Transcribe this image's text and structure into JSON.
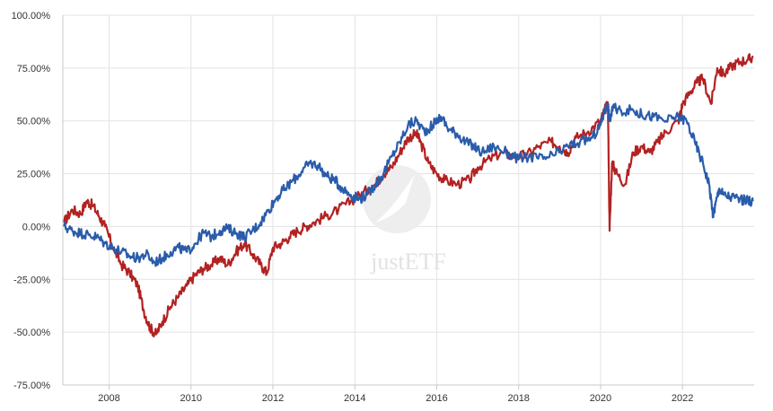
{
  "chart_data": {
    "type": "line",
    "watermark": "justETF",
    "y_ticks": [
      "100.00%",
      "75.00%",
      "50.00%",
      "25.00%",
      "0.00%",
      "-25.00%",
      "-50.00%",
      "-75.00%"
    ],
    "y_tick_values": [
      100,
      75,
      50,
      25,
      0,
      -25,
      -50,
      -75
    ],
    "x_ticks": [
      "2008",
      "2010",
      "2012",
      "2014",
      "2016",
      "2018",
      "2020",
      "2022"
    ],
    "x_tick_values": [
      2008,
      2010,
      2012,
      2014,
      2016,
      2018,
      2020,
      2022
    ],
    "xlim": [
      2006.87,
      2023.75
    ],
    "ylim": [
      -75,
      100
    ],
    "grid": true,
    "series": [
      {
        "color": "#b22222",
        "x": [
          2006.9,
          2007.1,
          2007.3,
          2007.45,
          2007.6,
          2007.75,
          2007.9,
          2008.1,
          2008.3,
          2008.5,
          2008.7,
          2008.85,
          2009.0,
          2009.15,
          2009.3,
          2009.5,
          2009.7,
          2009.9,
          2010.1,
          2010.3,
          2010.5,
          2010.7,
          2010.9,
          2011.1,
          2011.3,
          2011.5,
          2011.7,
          2011.85,
          2012.0,
          2012.2,
          2012.4,
          2012.6,
          2012.8,
          2013.0,
          2013.3,
          2013.6,
          2013.9,
          2014.2,
          2014.5,
          2014.7,
          2014.9,
          2015.1,
          2015.3,
          2015.5,
          2015.6,
          2015.8,
          2016.0,
          2016.2,
          2016.5,
          2016.8,
          2017.0,
          2017.3,
          2017.6,
          2017.9,
          2018.2,
          2018.5,
          2018.8,
          2019.0,
          2019.2,
          2019.4,
          2019.7,
          2020.0,
          2020.1,
          2020.18,
          2020.22,
          2020.28,
          2020.4,
          2020.6,
          2020.8,
          2021.0,
          2021.2,
          2021.4,
          2021.6,
          2021.9,
          2022.0,
          2022.2,
          2022.35,
          2022.5,
          2022.7,
          2022.85,
          2023.0,
          2023.2,
          2023.4,
          2023.6,
          2023.72
        ],
        "values": [
          2,
          8,
          6,
          12,
          10,
          5,
          0,
          -10,
          -18,
          -22,
          -28,
          -40,
          -48,
          -51,
          -45,
          -38,
          -33,
          -28,
          -23,
          -20,
          -18,
          -15,
          -18,
          -12,
          -8,
          -13,
          -18,
          -22,
          -10,
          -8,
          -5,
          -2,
          0,
          2,
          5,
          8,
          12,
          16,
          20,
          25,
          28,
          35,
          42,
          44,
          40,
          30,
          25,
          22,
          20,
          22,
          28,
          32,
          35,
          33,
          34,
          38,
          40,
          38,
          35,
          42,
          45,
          50,
          55,
          58,
          -2,
          30,
          25,
          20,
          35,
          38,
          35,
          40,
          45,
          50,
          58,
          64,
          68,
          70,
          58,
          75,
          72,
          76,
          78,
          79,
          80
        ]
      },
      {
        "color": "#2a5caa",
        "x": [
          2006.9,
          2007.1,
          2007.3,
          2007.5,
          2007.7,
          2007.9,
          2008.1,
          2008.3,
          2008.5,
          2008.7,
          2008.9,
          2009.1,
          2009.3,
          2009.5,
          2009.7,
          2009.9,
          2010.1,
          2010.3,
          2010.5,
          2010.7,
          2010.9,
          2011.1,
          2011.3,
          2011.5,
          2011.7,
          2011.9,
          2012.1,
          2012.3,
          2012.5,
          2012.7,
          2012.9,
          2013.1,
          2013.3,
          2013.5,
          2013.7,
          2013.9,
          2014.1,
          2014.3,
          2014.5,
          2014.7,
          2014.9,
          2015.1,
          2015.3,
          2015.5,
          2015.7,
          2015.9,
          2016.1,
          2016.3,
          2016.5,
          2016.7,
          2016.9,
          2017.1,
          2017.4,
          2017.7,
          2018.0,
          2018.3,
          2018.6,
          2018.9,
          2019.2,
          2019.5,
          2019.8,
          2020.0,
          2020.1,
          2020.18,
          2020.22,
          2020.3,
          2020.5,
          2020.8,
          2021.0,
          2021.3,
          2021.6,
          2021.9,
          2022.1,
          2022.3,
          2022.5,
          2022.65,
          2022.75,
          2022.8,
          2022.9,
          2023.0,
          2023.2,
          2023.4,
          2023.6,
          2023.72
        ],
        "values": [
          0,
          -2,
          -3,
          -4,
          -5,
          -8,
          -10,
          -12,
          -14,
          -15,
          -13,
          -17,
          -15,
          -12,
          -10,
          -12,
          -8,
          -3,
          -5,
          -2,
          -1,
          -3,
          -5,
          -2,
          2,
          8,
          14,
          18,
          22,
          26,
          30,
          29,
          24,
          22,
          18,
          15,
          13,
          15,
          20,
          25,
          33,
          40,
          48,
          50,
          45,
          48,
          52,
          46,
          44,
          40,
          38,
          35,
          38,
          35,
          32,
          33,
          32,
          34,
          38,
          40,
          42,
          48,
          55,
          58,
          50,
          56,
          55,
          55,
          53,
          52,
          50,
          52,
          50,
          40,
          30,
          20,
          5,
          10,
          18,
          15,
          14,
          13,
          12,
          12
        ]
      }
    ]
  }
}
